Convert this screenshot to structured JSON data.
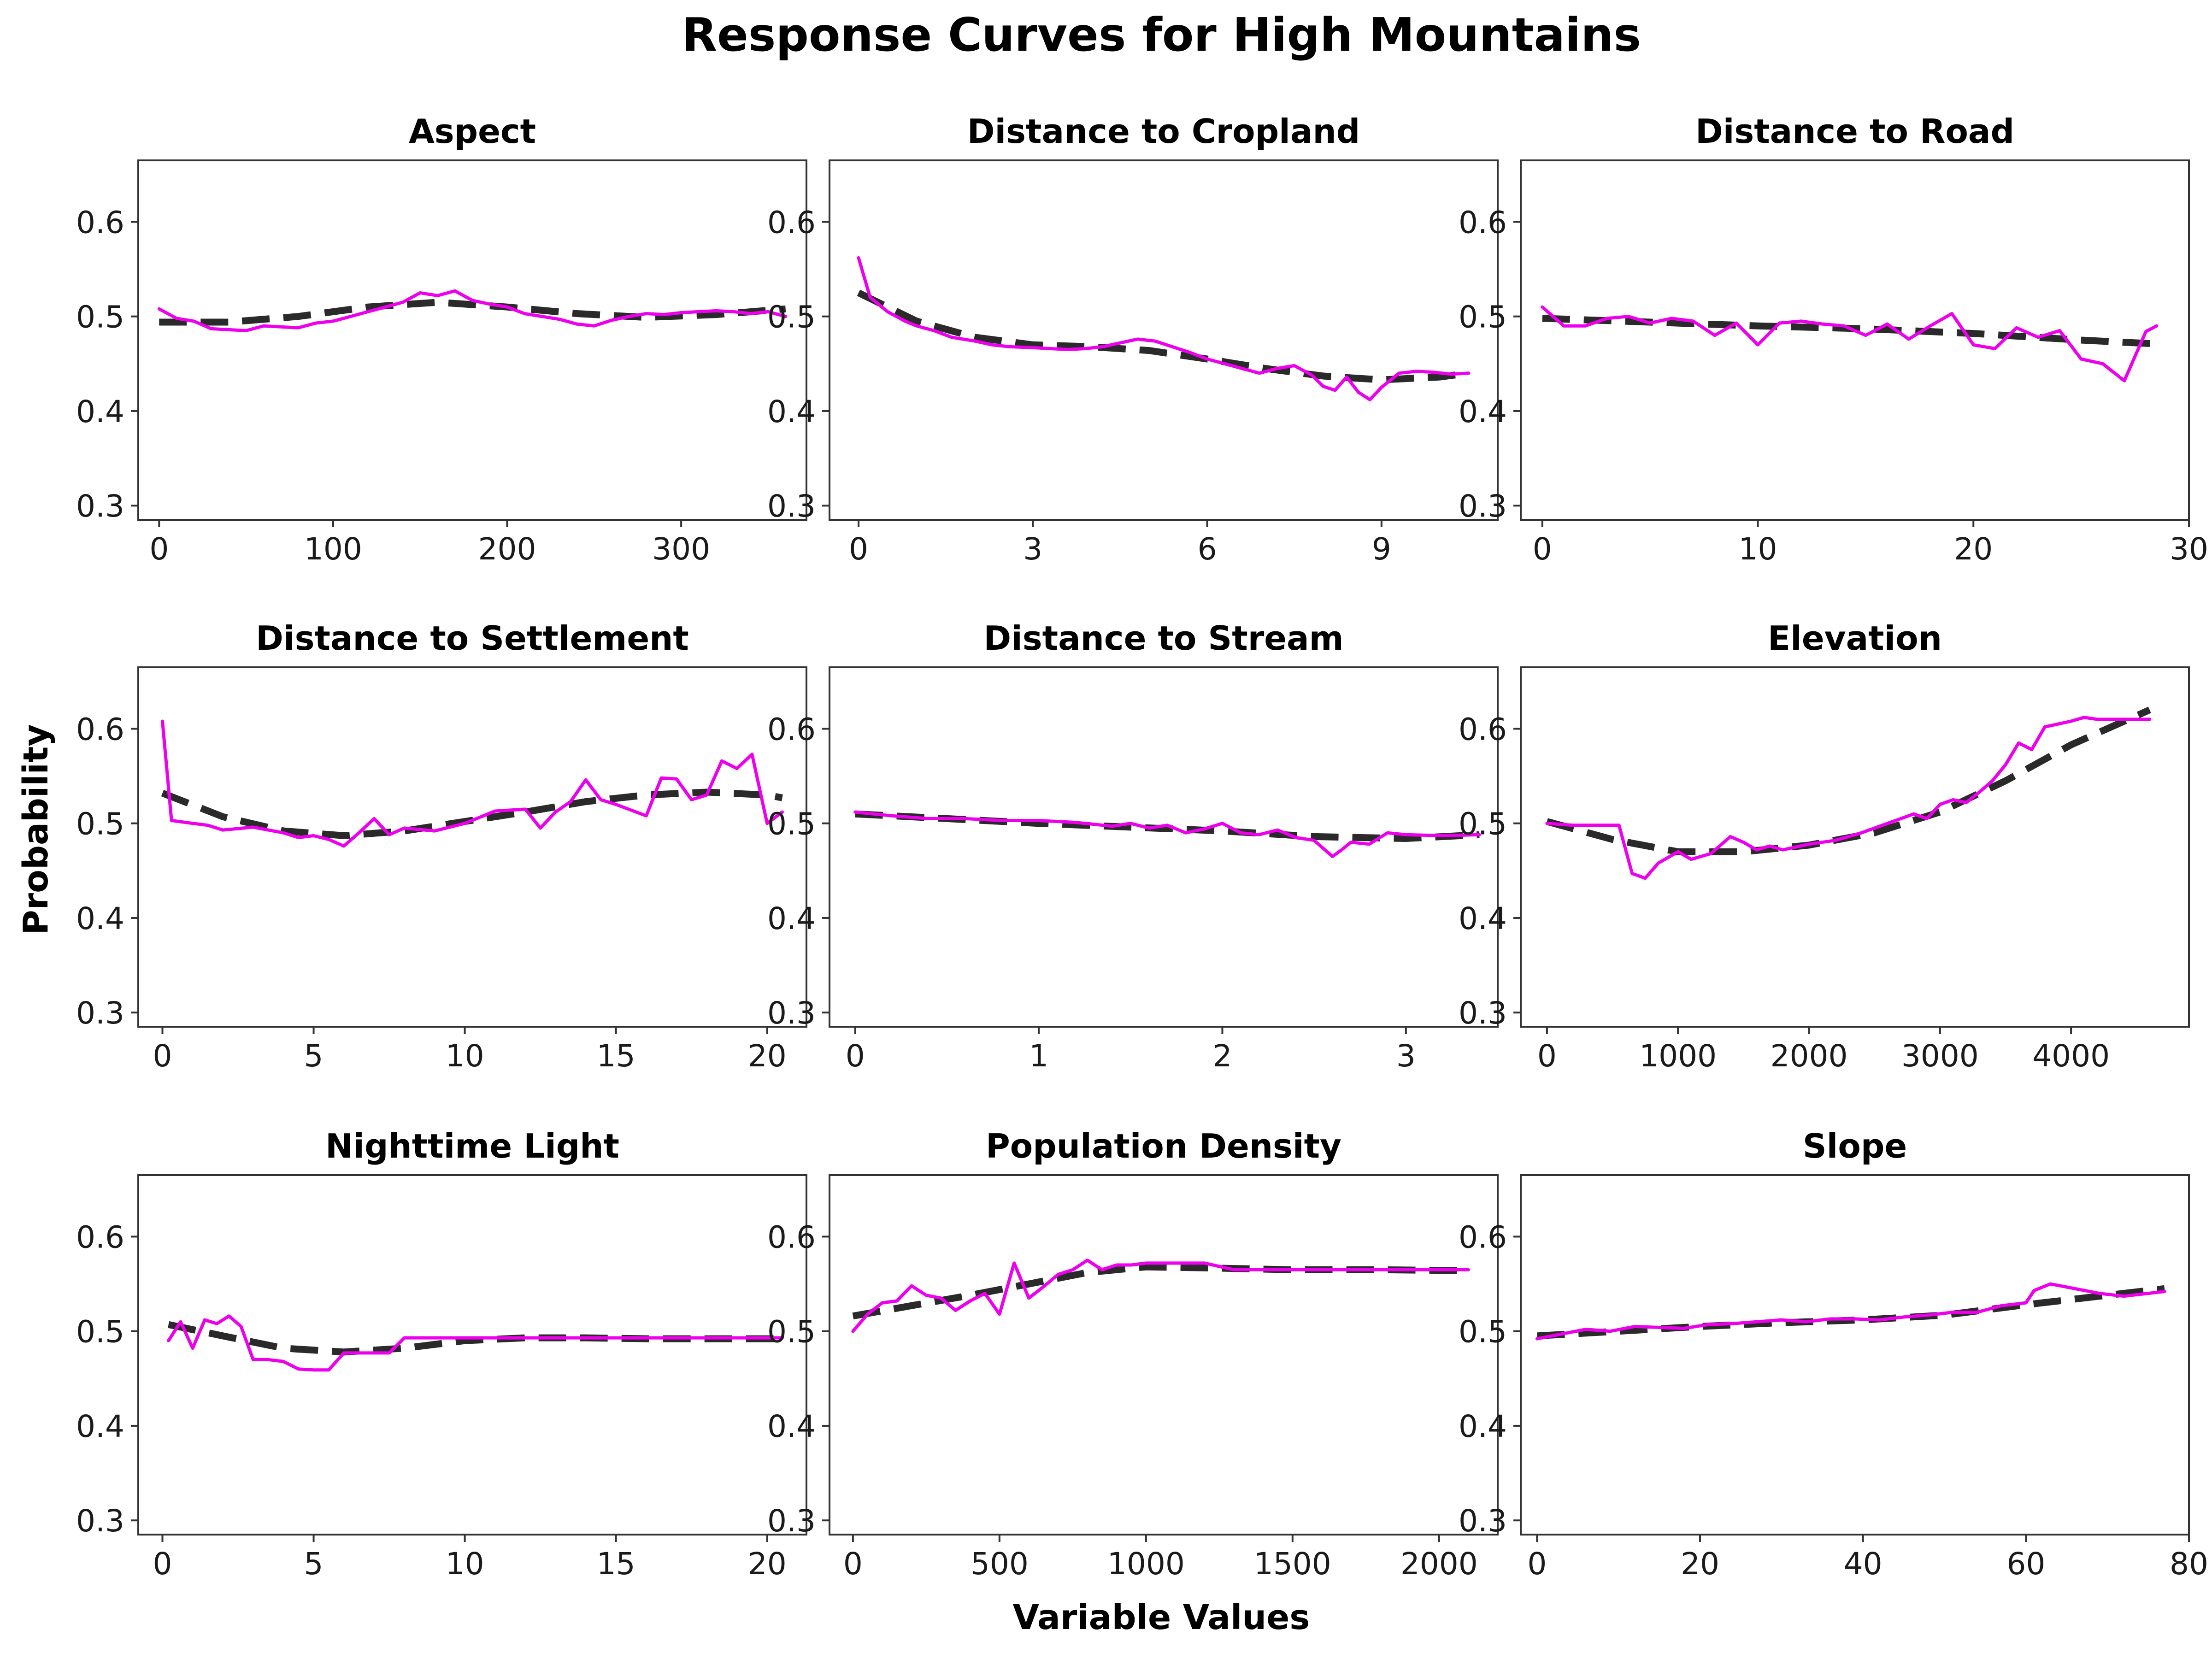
{
  "title": "Response Curves for High Mountains",
  "xlabel": "Variable Values",
  "ylabel": "Probability",
  "colors": {
    "empirical": "#ee00ee",
    "smooth": "#2a2a2a",
    "frame": "#333333"
  },
  "chart_data": [
    {
      "type": "line",
      "title": "Aspect",
      "xlim": [
        -12,
        372
      ],
      "ylim": [
        0.285,
        0.665
      ],
      "xticks": [
        0,
        100,
        200,
        300
      ],
      "xtick_labels": [
        "0",
        "100",
        "200",
        "300"
      ],
      "yticks": [
        0.3,
        0.4,
        0.5,
        0.6
      ],
      "ytick_labels": [
        "0.3",
        "0.4",
        "0.5",
        "0.6"
      ],
      "series": [
        {
          "x": [
            0,
            10,
            20,
            30,
            40,
            50,
            60,
            70,
            80,
            90,
            100,
            110,
            120,
            130,
            140,
            150,
            160,
            170,
            180,
            190,
            200,
            210,
            220,
            230,
            240,
            250,
            260,
            270,
            280,
            290,
            300,
            310,
            320,
            330,
            340,
            350,
            360
          ],
          "values": [
            0.508,
            0.498,
            0.495,
            0.487,
            0.486,
            0.485,
            0.49,
            0.489,
            0.488,
            0.493,
            0.495,
            0.5,
            0.505,
            0.51,
            0.515,
            0.525,
            0.522,
            0.527,
            0.517,
            0.513,
            0.51,
            0.503,
            0.5,
            0.497,
            0.492,
            0.49,
            0.496,
            0.5,
            0.503,
            0.502,
            0.504,
            0.505,
            0.506,
            0.505,
            0.503,
            0.505,
            0.5
          ]
        },
        {
          "x": [
            0,
            40,
            80,
            120,
            160,
            200,
            240,
            280,
            320,
            360
          ],
          "values": [
            0.494,
            0.494,
            0.5,
            0.51,
            0.515,
            0.51,
            0.503,
            0.499,
            0.502,
            0.508
          ]
        }
      ]
    },
    {
      "type": "line",
      "title": "Distance to Cropland",
      "xlim": [
        -0.5,
        11.0
      ],
      "ylim": [
        0.285,
        0.665
      ],
      "xticks": [
        0,
        3,
        6,
        9
      ],
      "xtick_labels": [
        "0",
        "3",
        "6",
        "9"
      ],
      "yticks": [
        0.3,
        0.4,
        0.5,
        0.6
      ],
      "ytick_labels": [
        "0.3",
        "0.4",
        "0.5",
        "0.6"
      ],
      "series": [
        {
          "x": [
            0,
            0.2,
            0.5,
            0.8,
            1.0,
            1.3,
            1.6,
            2.0,
            2.3,
            2.6,
            3.0,
            3.3,
            3.6,
            3.9,
            4.2,
            4.5,
            4.8,
            5.1,
            5.4,
            5.7,
            6.0,
            6.3,
            6.6,
            6.9,
            7.2,
            7.5,
            7.8,
            8.0,
            8.2,
            8.4,
            8.6,
            8.8,
            9.0,
            9.3,
            9.6,
            9.9,
            10.2,
            10.5
          ],
          "values": [
            0.562,
            0.52,
            0.505,
            0.495,
            0.49,
            0.485,
            0.478,
            0.474,
            0.47,
            0.468,
            0.467,
            0.466,
            0.465,
            0.466,
            0.468,
            0.472,
            0.476,
            0.474,
            0.468,
            0.462,
            0.455,
            0.45,
            0.445,
            0.44,
            0.445,
            0.448,
            0.438,
            0.426,
            0.422,
            0.436,
            0.42,
            0.412,
            0.425,
            0.44,
            0.442,
            0.441,
            0.439,
            0.44
          ]
        },
        {
          "x": [
            0,
            1,
            2,
            3,
            4,
            5,
            6,
            7,
            8,
            9,
            10,
            10.5
          ],
          "values": [
            0.525,
            0.495,
            0.478,
            0.47,
            0.468,
            0.464,
            0.455,
            0.445,
            0.437,
            0.433,
            0.436,
            0.44
          ]
        }
      ]
    },
    {
      "type": "line",
      "title": "Distance to Road",
      "xlim": [
        -1.0,
        30.0
      ],
      "ylim": [
        0.285,
        0.665
      ],
      "xticks": [
        0,
        10,
        20,
        30
      ],
      "xtick_labels": [
        "0",
        "10",
        "20",
        "30"
      ],
      "yticks": [
        0.3,
        0.4,
        0.5,
        0.6
      ],
      "ytick_labels": [
        "0.3",
        "0.4",
        "0.5",
        "0.6"
      ],
      "series": [
        {
          "x": [
            0,
            1,
            2,
            3,
            4,
            5,
            6,
            7,
            8,
            9,
            10,
            11,
            12,
            13,
            14,
            15,
            16,
            17,
            18,
            19,
            20,
            21,
            22,
            23,
            24,
            25,
            26,
            27,
            28,
            28.5
          ],
          "values": [
            0.51,
            0.49,
            0.49,
            0.498,
            0.5,
            0.493,
            0.498,
            0.495,
            0.48,
            0.493,
            0.47,
            0.493,
            0.495,
            0.492,
            0.49,
            0.48,
            0.492,
            0.476,
            0.49,
            0.503,
            0.47,
            0.466,
            0.488,
            0.478,
            0.485,
            0.455,
            0.45,
            0.432,
            0.484,
            0.49
          ]
        },
        {
          "x": [
            0,
            5,
            10,
            15,
            20,
            25,
            28.5
          ],
          "values": [
            0.498,
            0.494,
            0.49,
            0.487,
            0.482,
            0.475,
            0.471
          ]
        }
      ]
    },
    {
      "type": "line",
      "title": "Distance to Settlement",
      "xlim": [
        -0.8,
        21.3
      ],
      "ylim": [
        0.285,
        0.665
      ],
      "xticks": [
        0,
        5,
        10,
        15,
        20
      ],
      "xtick_labels": [
        "0",
        "5",
        "10",
        "15",
        "20"
      ],
      "yticks": [
        0.3,
        0.4,
        0.5,
        0.6
      ],
      "ytick_labels": [
        "0.3",
        "0.4",
        "0.5",
        "0.6"
      ],
      "series": [
        {
          "x": [
            0,
            0.3,
            1,
            1.5,
            2,
            3,
            4,
            4.5,
            5,
            5.5,
            6,
            6.5,
            7,
            7.5,
            8,
            9,
            10,
            11,
            12,
            12.5,
            13,
            13.5,
            14,
            14.5,
            15,
            16,
            16.5,
            17,
            17.5,
            18,
            18.5,
            19,
            19.5,
            20,
            20.5
          ],
          "values": [
            0.608,
            0.503,
            0.5,
            0.498,
            0.493,
            0.496,
            0.49,
            0.485,
            0.487,
            0.483,
            0.476,
            0.49,
            0.505,
            0.488,
            0.495,
            0.492,
            0.5,
            0.513,
            0.515,
            0.495,
            0.512,
            0.523,
            0.546,
            0.525,
            0.52,
            0.508,
            0.548,
            0.547,
            0.525,
            0.53,
            0.566,
            0.558,
            0.573,
            0.5,
            0.512
          ]
        },
        {
          "x": [
            0,
            2,
            4,
            6,
            8,
            10,
            12,
            14,
            16,
            18,
            20,
            20.5
          ],
          "values": [
            0.532,
            0.507,
            0.492,
            0.487,
            0.492,
            0.502,
            0.512,
            0.523,
            0.53,
            0.533,
            0.53,
            0.527
          ]
        }
      ]
    },
    {
      "type": "line",
      "title": "Distance to Stream",
      "xlim": [
        -0.14,
        3.5
      ],
      "ylim": [
        0.285,
        0.665
      ],
      "xticks": [
        0,
        1,
        2,
        3
      ],
      "xtick_labels": [
        "0",
        "1",
        "2",
        "3"
      ],
      "yticks": [
        0.3,
        0.4,
        0.5,
        0.6
      ],
      "ytick_labels": [
        "0.3",
        "0.4",
        "0.5",
        "0.6"
      ],
      "series": [
        {
          "x": [
            0,
            0.2,
            0.4,
            0.6,
            0.8,
            1.0,
            1.2,
            1.4,
            1.5,
            1.6,
            1.7,
            1.8,
            1.9,
            2.0,
            2.1,
            2.2,
            2.3,
            2.4,
            2.5,
            2.6,
            2.65,
            2.7,
            2.8,
            2.9,
            3.0,
            3.2,
            3.4
          ],
          "values": [
            0.512,
            0.508,
            0.505,
            0.505,
            0.503,
            0.503,
            0.501,
            0.497,
            0.5,
            0.495,
            0.498,
            0.49,
            0.494,
            0.5,
            0.49,
            0.488,
            0.493,
            0.485,
            0.482,
            0.465,
            0.472,
            0.48,
            0.478,
            0.49,
            0.488,
            0.487,
            0.488
          ]
        },
        {
          "x": [
            0,
            0.5,
            1.0,
            1.5,
            2.0,
            2.5,
            3.0,
            3.4
          ],
          "values": [
            0.51,
            0.505,
            0.5,
            0.496,
            0.492,
            0.486,
            0.484,
            0.488
          ]
        }
      ]
    },
    {
      "type": "line",
      "title": "Elevation",
      "xlim": [
        -200,
        4900
      ],
      "ylim": [
        0.285,
        0.665
      ],
      "xticks": [
        0,
        1000,
        2000,
        3000,
        4000
      ],
      "xtick_labels": [
        "0",
        "1000",
        "2000",
        "3000",
        "4000"
      ],
      "yticks": [
        0.3,
        0.4,
        0.5,
        0.6
      ],
      "ytick_labels": [
        "0.3",
        "0.4",
        "0.5",
        "0.6"
      ],
      "series": [
        {
          "x": [
            0,
            200,
            400,
            550,
            650,
            750,
            850,
            1000,
            1100,
            1250,
            1400,
            1500,
            1600,
            1700,
            1800,
            2000,
            2200,
            2400,
            2600,
            2800,
            2900,
            3000,
            3100,
            3200,
            3300,
            3400,
            3500,
            3600,
            3700,
            3800,
            3900,
            4000,
            4100,
            4200,
            4400,
            4600
          ],
          "values": [
            0.5,
            0.498,
            0.498,
            0.498,
            0.447,
            0.442,
            0.458,
            0.47,
            0.462,
            0.468,
            0.486,
            0.48,
            0.472,
            0.476,
            0.472,
            0.478,
            0.482,
            0.49,
            0.5,
            0.51,
            0.505,
            0.52,
            0.525,
            0.522,
            0.533,
            0.545,
            0.562,
            0.585,
            0.578,
            0.602,
            0.605,
            0.608,
            0.612,
            0.61,
            0.61,
            0.61
          ]
        },
        {
          "x": [
            0,
            500,
            1000,
            1500,
            2000,
            2500,
            3000,
            3500,
            4000,
            4600
          ],
          "values": [
            0.502,
            0.483,
            0.47,
            0.47,
            0.477,
            0.49,
            0.512,
            0.545,
            0.583,
            0.62
          ]
        }
      ]
    },
    {
      "type": "line",
      "title": "Nighttime Light",
      "xlim": [
        -0.8,
        21.3
      ],
      "ylim": [
        0.285,
        0.665
      ],
      "xticks": [
        0,
        5,
        10,
        15,
        20
      ],
      "xtick_labels": [
        "0",
        "5",
        "10",
        "15",
        "20"
      ],
      "yticks": [
        0.3,
        0.4,
        0.5,
        0.6
      ],
      "ytick_labels": [
        "0.3",
        "0.4",
        "0.5",
        "0.6"
      ],
      "series": [
        {
          "x": [
            0.2,
            0.6,
            1.0,
            1.4,
            1.8,
            2.2,
            2.6,
            3.0,
            3.5,
            4.0,
            4.5,
            5.0,
            5.5,
            6.0,
            6.5,
            7.0,
            7.5,
            8.0,
            9.0,
            10.0,
            12.0,
            14.0,
            16.0,
            18.0,
            20.5
          ],
          "values": [
            0.49,
            0.51,
            0.482,
            0.512,
            0.508,
            0.516,
            0.505,
            0.47,
            0.47,
            0.468,
            0.46,
            0.459,
            0.459,
            0.477,
            0.477,
            0.477,
            0.477,
            0.493,
            0.493,
            0.493,
            0.493,
            0.493,
            0.493,
            0.493,
            0.493
          ]
        },
        {
          "x": [
            0.2,
            2.0,
            4.0,
            6.0,
            8.0,
            10.0,
            12.0,
            14.0,
            16.0,
            18.0,
            20.5
          ],
          "values": [
            0.507,
            0.495,
            0.482,
            0.478,
            0.482,
            0.49,
            0.493,
            0.493,
            0.492,
            0.492,
            0.492
          ]
        }
      ]
    },
    {
      "type": "line",
      "title": "Population Density",
      "xlim": [
        -80,
        2200
      ],
      "ylim": [
        0.285,
        0.665
      ],
      "xticks": [
        0,
        500,
        1000,
        1500,
        2000
      ],
      "xtick_labels": [
        "0",
        "500",
        "1000",
        "1500",
        "2000"
      ],
      "yticks": [
        0.3,
        0.4,
        0.5,
        0.6
      ],
      "ytick_labels": [
        "0.3",
        "0.4",
        "0.5",
        "0.6"
      ],
      "series": [
        {
          "x": [
            0,
            50,
            100,
            150,
            200,
            250,
            300,
            350,
            400,
            450,
            500,
            550,
            600,
            650,
            700,
            750,
            800,
            850,
            900,
            950,
            1000,
            1100,
            1200,
            1300,
            1500,
            1700,
            1900,
            2100
          ],
          "values": [
            0.5,
            0.518,
            0.53,
            0.532,
            0.548,
            0.538,
            0.535,
            0.522,
            0.532,
            0.54,
            0.518,
            0.572,
            0.535,
            0.547,
            0.56,
            0.565,
            0.575,
            0.565,
            0.57,
            0.57,
            0.572,
            0.572,
            0.572,
            0.565,
            0.565,
            0.565,
            0.565,
            0.565
          ]
        },
        {
          "x": [
            0,
            200,
            400,
            600,
            800,
            1000,
            1200,
            1500,
            1800,
            2100
          ],
          "values": [
            0.516,
            0.527,
            0.538,
            0.55,
            0.562,
            0.568,
            0.567,
            0.565,
            0.565,
            0.564
          ]
        }
      ]
    },
    {
      "type": "line",
      "title": "Slope",
      "xlim": [
        -2,
        80
      ],
      "ylim": [
        0.285,
        0.665
      ],
      "xticks": [
        0,
        20,
        40,
        60,
        80
      ],
      "xtick_labels": [
        "0",
        "20",
        "40",
        "60",
        "80"
      ],
      "yticks": [
        0.3,
        0.4,
        0.5,
        0.6
      ],
      "ytick_labels": [
        "0.3",
        "0.4",
        "0.5",
        "0.6"
      ],
      "series": [
        {
          "x": [
            0,
            3,
            6,
            9,
            12,
            15,
            18,
            21,
            24,
            27,
            30,
            33,
            36,
            39,
            42,
            45,
            48,
            51,
            54,
            57,
            60,
            61,
            63,
            66,
            69,
            72,
            75,
            77
          ],
          "values": [
            0.492,
            0.497,
            0.502,
            0.5,
            0.505,
            0.504,
            0.503,
            0.507,
            0.508,
            0.51,
            0.512,
            0.51,
            0.513,
            0.513,
            0.512,
            0.515,
            0.517,
            0.52,
            0.52,
            0.527,
            0.53,
            0.543,
            0.55,
            0.545,
            0.54,
            0.537,
            0.54,
            0.542
          ]
        },
        {
          "x": [
            0,
            10,
            20,
            30,
            40,
            50,
            60,
            70,
            77
          ],
          "values": [
            0.495,
            0.5,
            0.505,
            0.509,
            0.512,
            0.517,
            0.528,
            0.538,
            0.545
          ]
        }
      ]
    }
  ]
}
